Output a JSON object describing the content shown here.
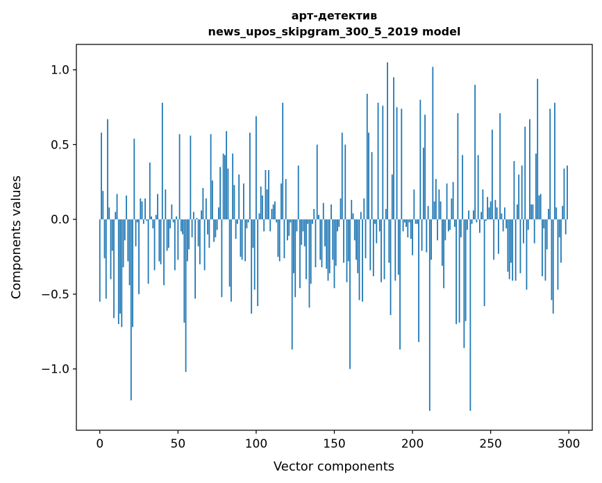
{
  "chart_data": {
    "type": "bar",
    "title": [
      "арт-детектив",
      "news_upos_skipgram_300_5_2019 model"
    ],
    "xlabel": "Vector components",
    "ylabel": "Components values",
    "xlim": [
      -15,
      315
    ],
    "ylim": [
      -1.41,
      1.17
    ],
    "grid": false,
    "bar_color": "#1f77b4",
    "x_ticks": [
      {
        "value": 0,
        "label": "0"
      },
      {
        "value": 50,
        "label": "50"
      },
      {
        "value": 100,
        "label": "100"
      },
      {
        "value": 150,
        "label": "150"
      },
      {
        "value": 200,
        "label": "200"
      },
      {
        "value": 250,
        "label": "250"
      },
      {
        "value": 300,
        "label": "300"
      }
    ],
    "y_ticks": [
      {
        "value": -1.0,
        "label": "−1.0"
      },
      {
        "value": -0.5,
        "label": "−0.5"
      },
      {
        "value": 0.0,
        "label": "0.0"
      },
      {
        "value": 0.5,
        "label": "0.5"
      },
      {
        "value": 1.0,
        "label": "1.0"
      }
    ],
    "values": [
      -0.55,
      0.58,
      0.19,
      -0.26,
      -0.53,
      0.67,
      0.08,
      -0.4,
      -0.21,
      -0.66,
      0.05,
      0.17,
      -0.7,
      -0.63,
      -0.72,
      -0.32,
      -0.14,
      0.16,
      -0.28,
      -0.44,
      -1.21,
      -0.72,
      0.54,
      -0.18,
      -0.02,
      -0.5,
      0.14,
      0.12,
      -0.03,
      0.14,
      -0.01,
      -0.43,
      0.38,
      0.02,
      -0.06,
      -0.34,
      0.03,
      0.17,
      -0.28,
      -0.3,
      0.78,
      -0.44,
      0.2,
      -0.21,
      -0.19,
      -0.06,
      0.1,
      -0.02,
      -0.34,
      0.02,
      -0.27,
      0.57,
      -0.08,
      -0.1,
      -0.69,
      -1.02,
      -0.28,
      -0.2,
      0.56,
      -0.12,
      0.05,
      -0.53,
      0.01,
      -0.18,
      -0.3,
      0.06,
      0.21,
      -0.34,
      0.14,
      -0.1,
      -0.19,
      0.57,
      0.26,
      -0.15,
      -0.12,
      -0.07,
      0.08,
      0.35,
      -0.52,
      0.44,
      0.43,
      0.59,
      0.34,
      -0.45,
      -0.55,
      0.44,
      0.23,
      -0.13,
      -0.03,
      0.3,
      -0.25,
      -0.27,
      0.24,
      -0.28,
      -0.06,
      -0.02,
      0.58,
      -0.63,
      -0.19,
      -0.47,
      0.69,
      -0.58,
      0.04,
      0.22,
      0.16,
      -0.08,
      0.33,
      0.2,
      0.33,
      -0.08,
      0.07,
      0.1,
      0.12,
      -0.02,
      -0.25,
      -0.28,
      0.24,
      0.78,
      -0.26,
      0.27,
      -0.14,
      -0.11,
      -0.02,
      -0.87,
      -0.36,
      -0.52,
      -0.08,
      0.36,
      -0.46,
      -0.17,
      -0.08,
      -0.18,
      -0.4,
      -0.03,
      -0.59,
      -0.43,
      -0.03,
      0.07,
      -0.32,
      0.5,
      0.03,
      -0.27,
      -0.32,
      0.11,
      -0.18,
      -0.33,
      -0.41,
      -0.36,
      0.1,
      -0.27,
      -0.46,
      -0.31,
      -0.08,
      -0.05,
      0.14,
      0.58,
      -0.29,
      0.5,
      -0.42,
      -0.28,
      -1.0,
      0.13,
      0.04,
      -0.14,
      -0.27,
      -0.36,
      -0.54,
      0.05,
      -0.55,
      0.14,
      -0.26,
      0.84,
      0.58,
      -0.34,
      0.45,
      -0.38,
      -0.03,
      -0.16,
      0.78,
      -0.08,
      -0.42,
      0.76,
      -0.4,
      0.07,
      1.05,
      -0.29,
      -0.64,
      0.3,
      0.95,
      -0.41,
      0.75,
      -0.37,
      -0.87,
      0.74,
      -0.08,
      -0.02,
      -0.05,
      -0.12,
      -0.02,
      -0.13,
      -0.24,
      0.2,
      -0.03,
      -0.03,
      -0.82,
      0.8,
      -0.21,
      0.48,
      0.7,
      -0.22,
      0.09,
      -1.28,
      -0.27,
      1.02,
      0.12,
      0.27,
      -0.14,
      0.2,
      0.12,
      -0.31,
      -0.46,
      -0.14,
      0.24,
      -0.08,
      -0.07,
      0.14,
      0.25,
      -0.05,
      -0.7,
      0.71,
      -0.69,
      -0.12,
      0.43,
      -0.86,
      -0.68,
      -0.07,
      0.06,
      -1.28,
      -0.03,
      0.06,
      0.9,
      -0.02,
      0.43,
      -0.09,
      0.05,
      0.2,
      -0.58,
      -0.01,
      0.15,
      0.08,
      0.12,
      0.6,
      -0.27,
      0.13,
      0.08,
      -0.23,
      0.71,
      0.04,
      -0.08,
      0.08,
      -0.06,
      -0.35,
      -0.4,
      -0.29,
      -0.41,
      0.39,
      -0.41,
      0.1,
      0.3,
      -0.36,
      0.36,
      -0.16,
      0.62,
      -0.47,
      -0.07,
      0.67,
      0.1,
      0.1,
      -0.16,
      0.44,
      0.94,
      0.16,
      0.17,
      -0.38,
      -0.06,
      -0.41,
      -0.2,
      0.07,
      0.74,
      -0.54,
      -0.63,
      0.78,
      0.08,
      -0.47,
      -0.12,
      -0.29,
      0.09,
      0.34,
      -0.1,
      0.36
    ]
  }
}
